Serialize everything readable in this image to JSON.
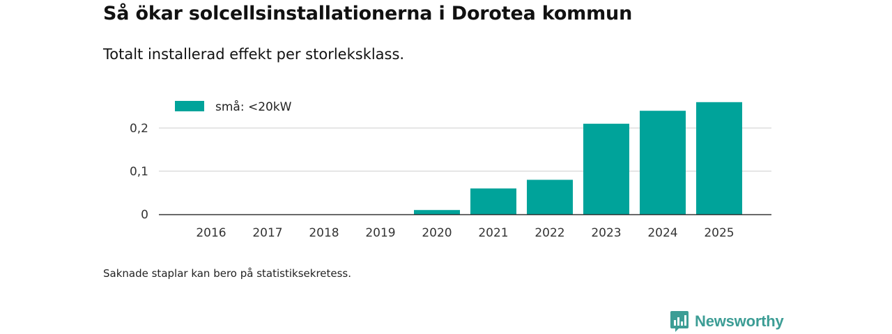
{
  "header": {
    "title": "Så ökar solcellsinstallationerna i Dorotea kommun",
    "subtitle": "Totalt installerad effekt per storleksklass."
  },
  "chart_data": {
    "type": "bar",
    "categories": [
      "2016",
      "2017",
      "2018",
      "2019",
      "2020",
      "2021",
      "2022",
      "2023",
      "2024",
      "2025"
    ],
    "series": [
      {
        "name": "små: <20kW",
        "values": [
          0,
          0,
          0,
          0,
          0.01,
          0.06,
          0.08,
          0.21,
          0.24,
          0.26
        ],
        "color": "#00a39a"
      }
    ],
    "yticks": [
      0,
      0.1,
      0.2
    ],
    "ytick_labels": [
      "0",
      "0,1",
      "0,2"
    ],
    "ylim": [
      0,
      0.27
    ],
    "title": "",
    "xlabel": "",
    "ylabel": "",
    "grid": true,
    "legend_position": "top-left"
  },
  "footer": {
    "note": "Saknade staplar kan bero på statistiksekretess.",
    "brand": "Newsworthy",
    "brand_color": "#3c9d95"
  }
}
